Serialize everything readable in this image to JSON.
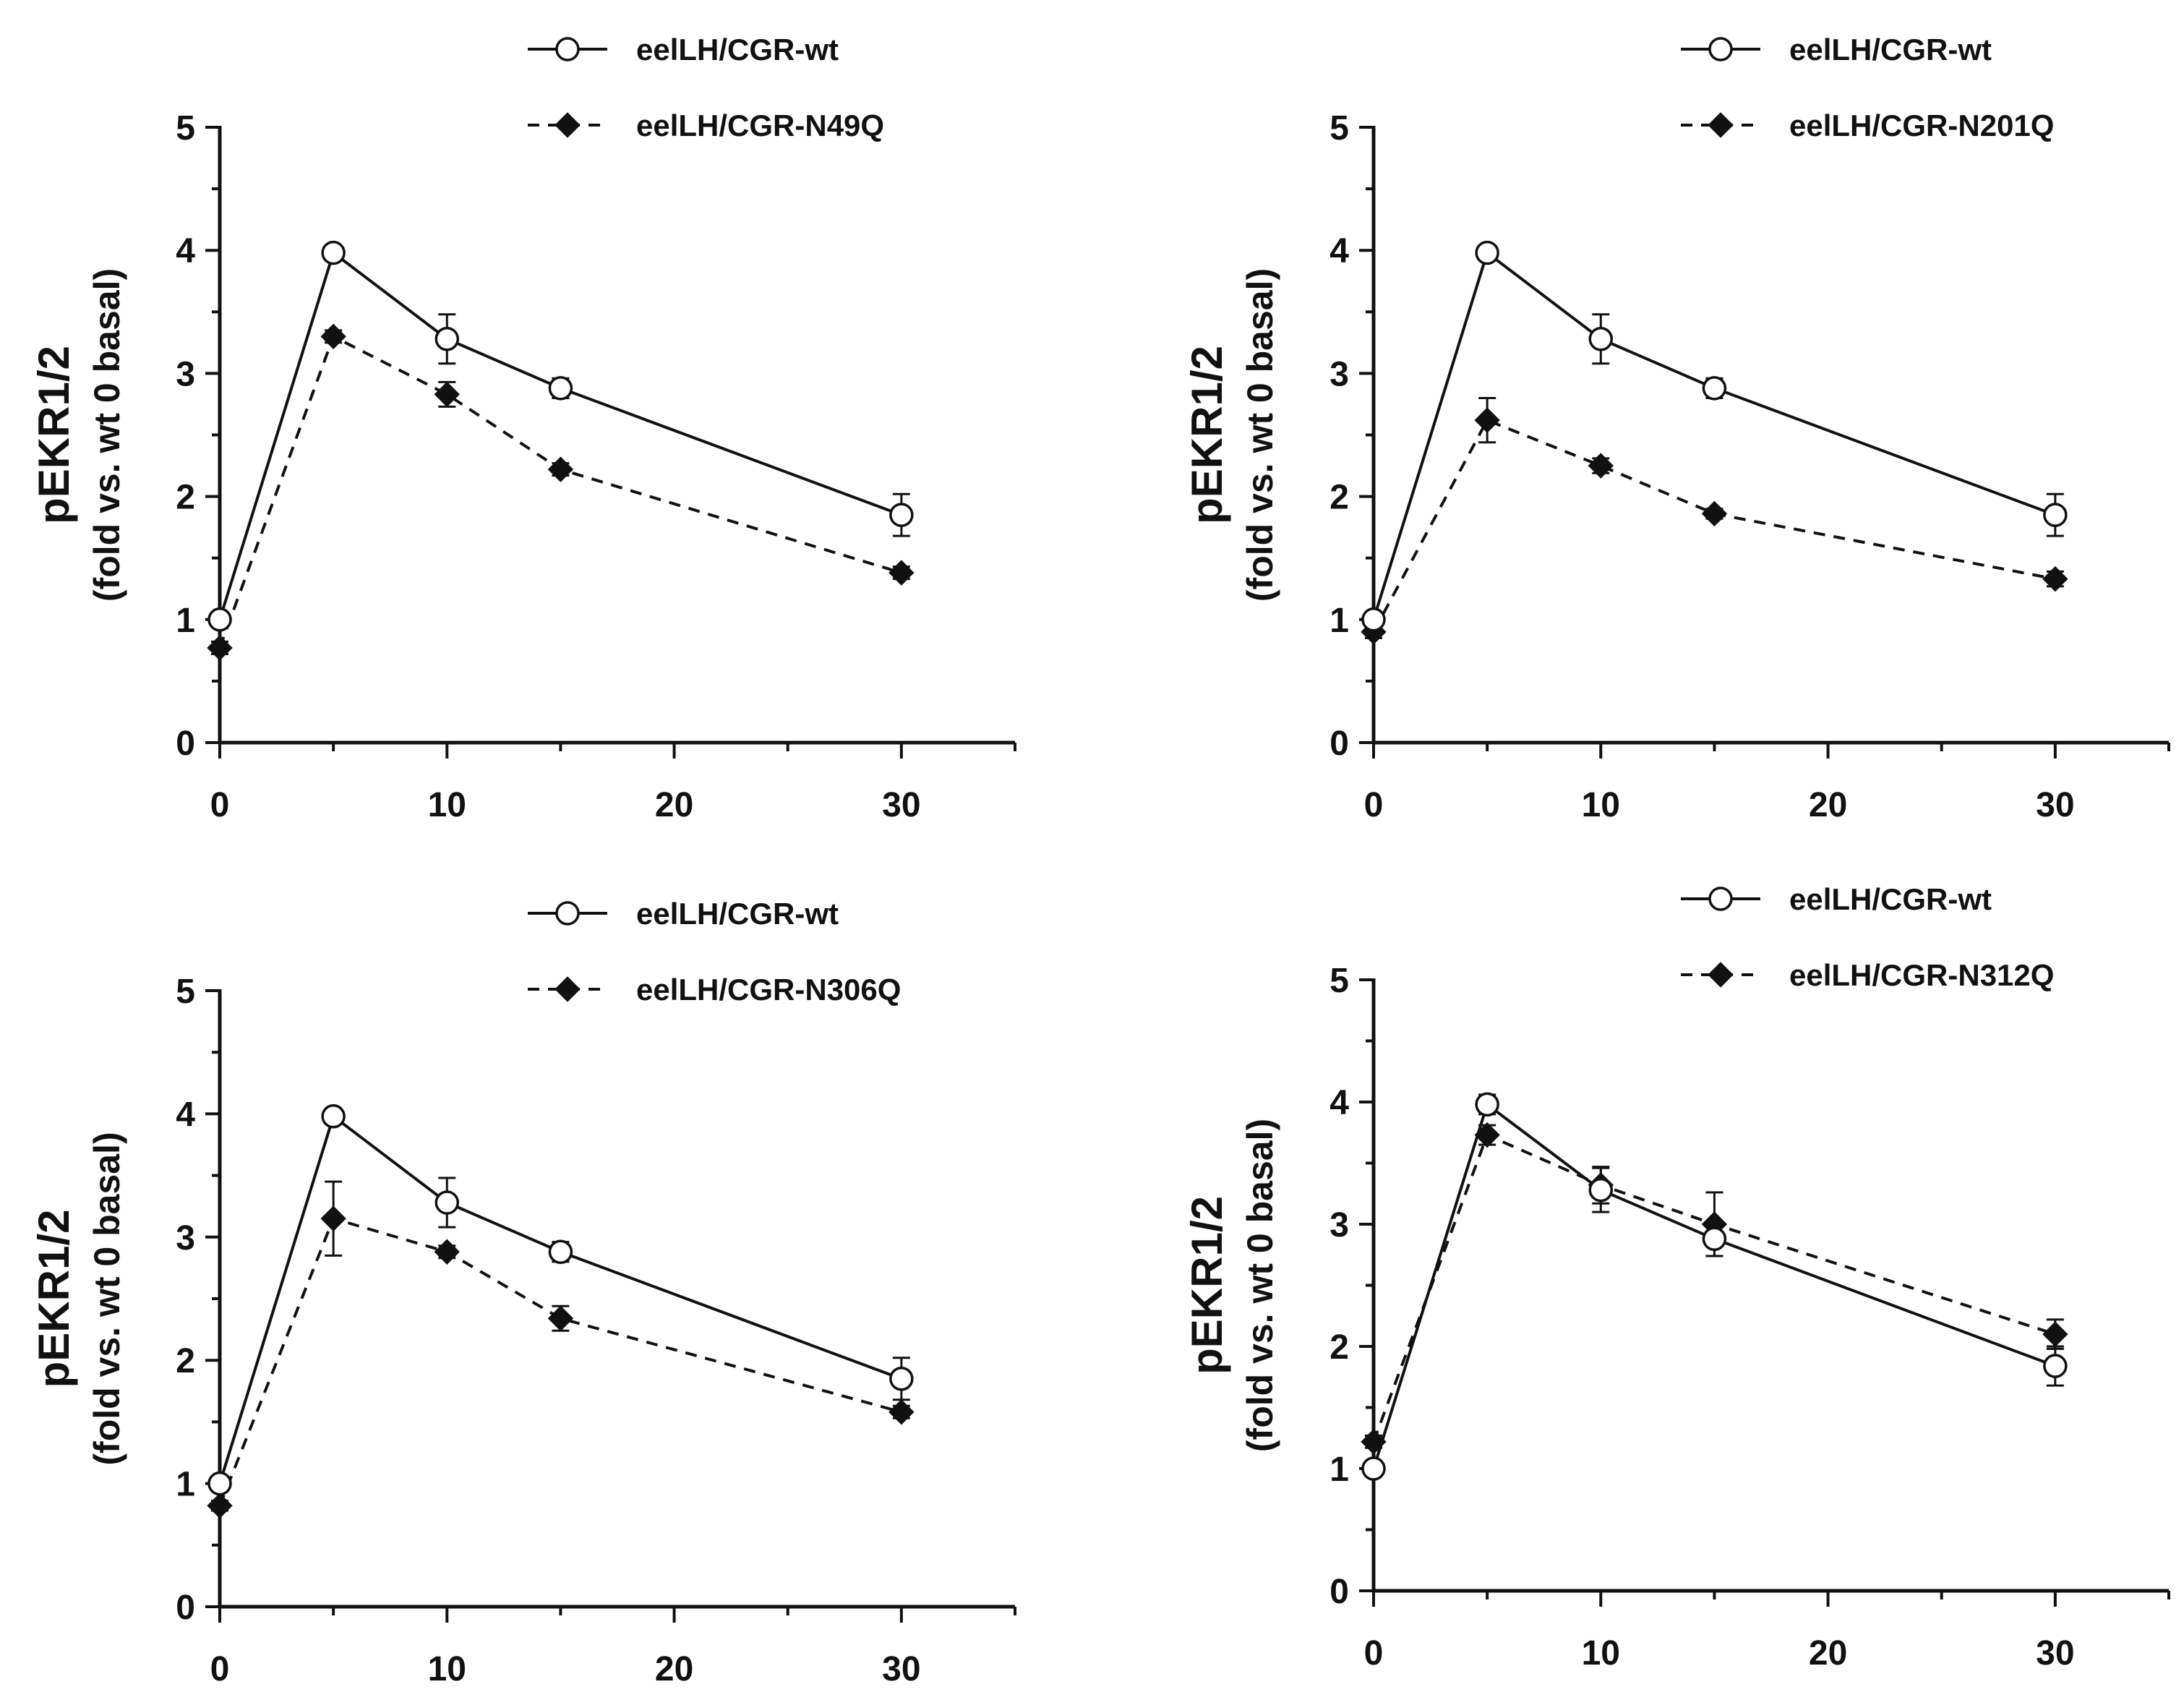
{
  "chart_data": [
    {
      "type": "line",
      "title": "",
      "ylabel": "pEKR1/2",
      "ylabel_sub": "(fold vs. wt 0 basal)",
      "xlabel": "",
      "xlim": [
        0,
        35
      ],
      "ylim": [
        0,
        5
      ],
      "x_ticks": [
        "0",
        "10",
        "20",
        "30"
      ],
      "y_ticks": [
        "0",
        "1",
        "2",
        "3",
        "4",
        "5"
      ],
      "grid": false,
      "legend_position": "top-right",
      "x": [
        0,
        5,
        10,
        15,
        30
      ],
      "series": [
        {
          "name": "eelLH/CGR-wt",
          "style": "solid-open-circle",
          "values": [
            1.0,
            3.98,
            3.28,
            2.88,
            1.85
          ],
          "errors": [
            0.03,
            0.05,
            0.2,
            0.08,
            0.17
          ]
        },
        {
          "name": "eelLH/CGR-N49Q",
          "style": "dashed-filled-diamond",
          "values": [
            0.77,
            3.3,
            2.83,
            2.22,
            1.38
          ],
          "errors": [
            0.05,
            0.05,
            0.1,
            0.05,
            0.05
          ]
        }
      ]
    },
    {
      "type": "line",
      "title": "",
      "ylabel": "pEKR1/2",
      "ylabel_sub": "(fold vs. wt 0 basal)",
      "xlabel": "",
      "xlim": [
        0,
        35
      ],
      "ylim": [
        0,
        5
      ],
      "x_ticks": [
        "0",
        "10",
        "20",
        "30"
      ],
      "y_ticks": [
        "0",
        "1",
        "2",
        "3",
        "4",
        "5"
      ],
      "grid": false,
      "legend_position": "top-right",
      "x": [
        0,
        5,
        10,
        15,
        30
      ],
      "series": [
        {
          "name": "eelLH/CGR-wt",
          "style": "solid-open-circle",
          "values": [
            1.0,
            3.98,
            3.28,
            2.88,
            1.85
          ],
          "errors": [
            0.03,
            0.05,
            0.2,
            0.08,
            0.17
          ]
        },
        {
          "name": "eelLH/CGR-N201Q",
          "style": "dashed-filled-diamond",
          "values": [
            0.9,
            2.62,
            2.25,
            1.86,
            1.33
          ],
          "errors": [
            0.05,
            0.18,
            0.06,
            0.04,
            0.06
          ]
        }
      ]
    },
    {
      "type": "line",
      "title": "",
      "ylabel": "pEKR1/2",
      "ylabel_sub": "(fold vs. wt 0 basal)",
      "xlabel": "",
      "xlim": [
        0,
        35
      ],
      "ylim": [
        0,
        5
      ],
      "x_ticks": [
        "0",
        "10",
        "20",
        "30"
      ],
      "y_ticks": [
        "0",
        "1",
        "2",
        "3",
        "4",
        "5"
      ],
      "grid": false,
      "legend_position": "top-right",
      "x": [
        0,
        5,
        10,
        15,
        30
      ],
      "series": [
        {
          "name": "eelLH/CGR-wt",
          "style": "solid-open-circle",
          "values": [
            1.0,
            3.98,
            3.28,
            2.88,
            1.85
          ],
          "errors": [
            0.03,
            0.05,
            0.2,
            0.08,
            0.17
          ]
        },
        {
          "name": "eelLH/CGR-N306Q",
          "style": "dashed-filled-diamond",
          "values": [
            0.82,
            3.15,
            2.88,
            2.34,
            1.58
          ],
          "errors": [
            0.04,
            0.3,
            0.05,
            0.1,
            0.05
          ]
        }
      ]
    },
    {
      "type": "line",
      "title": "",
      "ylabel": "pEKR1/2",
      "ylabel_sub": "(fold vs. wt 0 basal)",
      "xlabel": "",
      "xlim": [
        0,
        35
      ],
      "ylim": [
        0,
        5
      ],
      "x_ticks": [
        "0",
        "10",
        "20",
        "30"
      ],
      "y_ticks": [
        "0",
        "1",
        "2",
        "3",
        "4",
        "5"
      ],
      "grid": false,
      "legend_position": "top-right",
      "x": [
        0,
        5,
        10,
        15,
        30
      ],
      "series": [
        {
          "name": "eelLH/CGR-wt",
          "style": "solid-open-circle",
          "values": [
            1.0,
            3.98,
            3.28,
            2.88,
            1.84
          ],
          "errors": [
            0.03,
            0.08,
            0.18,
            0.14,
            0.16
          ]
        },
        {
          "name": "eelLH/CGR-N312Q",
          "style": "dashed-filled-diamond",
          "values": [
            1.22,
            3.73,
            3.32,
            3.0,
            2.1
          ],
          "errors": [
            0.05,
            0.08,
            0.15,
            0.26,
            0.12
          ]
        }
      ]
    }
  ],
  "colors": {
    "ink": "#111111",
    "marker_fill_open": "#ffffff",
    "marker_fill_solid": "#111111"
  }
}
